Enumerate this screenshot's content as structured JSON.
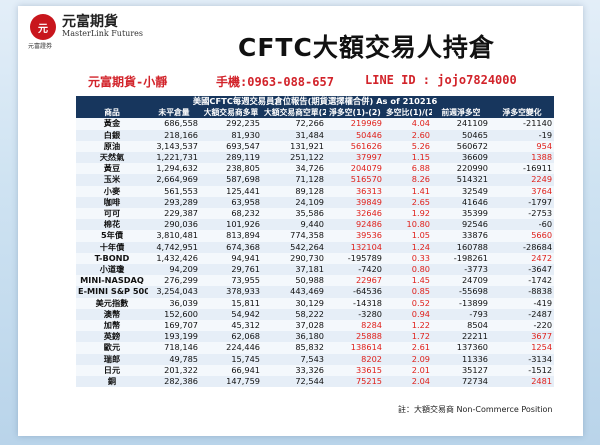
{
  "brand": {
    "mark": "元",
    "name_cn": "元富期貨",
    "name_en": "MasterLink Futures",
    "sub": "元富證券"
  },
  "title": "CFTC大額交易人持倉",
  "contact": {
    "name": "元富期貨-小靜",
    "phone": "手機:0963-088-657",
    "line": "LINE ID : jojo7824000"
  },
  "report_title": "美國CFTC每週交易員倉位報告(期貨選擇權合併) As of  210216",
  "columns": [
    "商品",
    "未平倉量",
    "大額交易商多單",
    "大額交易商空單(2)",
    "淨多空(1)-(2)",
    "多空比(1)/(2)",
    "前週淨多空",
    "淨多空變化"
  ],
  "colors": {
    "header_bg": "#17365d",
    "positive": "#e0211b",
    "negative": "#111111"
  },
  "rows": [
    [
      "黃金",
      "686,558",
      "292,235",
      "72,266",
      "219969",
      "4.04",
      "241109",
      "-21140"
    ],
    [
      "白銀",
      "218,166",
      "81,930",
      "31,484",
      "50446",
      "2.60",
      "50465",
      "-19"
    ],
    [
      "原油",
      "3,143,537",
      "693,547",
      "131,921",
      "561626",
      "5.26",
      "560672",
      "954"
    ],
    [
      "天然氣",
      "1,221,731",
      "289,119",
      "251,122",
      "37997",
      "1.15",
      "36609",
      "1388"
    ],
    [
      "黃豆",
      "1,294,632",
      "238,805",
      "34,726",
      "204079",
      "6.88",
      "220990",
      "-16911"
    ],
    [
      "玉米",
      "2,664,969",
      "587,698",
      "71,128",
      "516570",
      "8.26",
      "514321",
      "2249"
    ],
    [
      "小麥",
      "561,553",
      "125,441",
      "89,128",
      "36313",
      "1.41",
      "32549",
      "3764"
    ],
    [
      "咖啡",
      "293,289",
      "63,958",
      "24,109",
      "39849",
      "2.65",
      "41646",
      "-1797"
    ],
    [
      "可可",
      "229,387",
      "68,232",
      "35,586",
      "32646",
      "1.92",
      "35399",
      "-2753"
    ],
    [
      "棉花",
      "290,036",
      "101,926",
      "9,440",
      "92486",
      "10.80",
      "92546",
      "-60"
    ],
    [
      "5年債",
      "3,810,481",
      "813,894",
      "774,358",
      "39536",
      "1.05",
      "33876",
      "5660"
    ],
    [
      "十年債",
      "4,742,951",
      "674,368",
      "542,264",
      "132104",
      "1.24",
      "160788",
      "-28684"
    ],
    [
      "T-BOND",
      "1,432,426",
      "94,941",
      "290,730",
      "-195789",
      "0.33",
      "-198261",
      "2472"
    ],
    [
      "小道瓊",
      "94,209",
      "29,761",
      "37,181",
      "-7420",
      "0.80",
      "-3773",
      "-3647"
    ],
    [
      "MINI-NASDAQ",
      "276,299",
      "73,955",
      "50,988",
      "22967",
      "1.45",
      "24709",
      "-1742"
    ],
    [
      "E-MINI S&P 500",
      "3,254,043",
      "378,933",
      "443,469",
      "-64536",
      "0.85",
      "-55698",
      "-8838"
    ],
    [
      "美元指數",
      "36,039",
      "15,811",
      "30,129",
      "-14318",
      "0.52",
      "-13899",
      "-419"
    ],
    [
      "澳幣",
      "152,600",
      "54,942",
      "58,222",
      "-3280",
      "0.94",
      "-793",
      "-2487"
    ],
    [
      "加幣",
      "169,707",
      "45,312",
      "37,028",
      "8284",
      "1.22",
      "8504",
      "-220"
    ],
    [
      "英鎊",
      "193,199",
      "62,068",
      "36,180",
      "25888",
      "1.72",
      "22211",
      "3677"
    ],
    [
      "歐元",
      "718,146",
      "224,446",
      "85,832",
      "138614",
      "2.61",
      "137360",
      "1254"
    ],
    [
      "瑞郎",
      "49,785",
      "15,745",
      "7,543",
      "8202",
      "2.09",
      "11336",
      "-3134"
    ],
    [
      "日元",
      "201,322",
      "66,941",
      "33,326",
      "33615",
      "2.01",
      "35127",
      "-1512"
    ],
    [
      "銅",
      "282,386",
      "147,759",
      "72,544",
      "75215",
      "2.04",
      "72734",
      "2481"
    ]
  ],
  "footnote": "註：大額交易商 Non-Commerce Position"
}
